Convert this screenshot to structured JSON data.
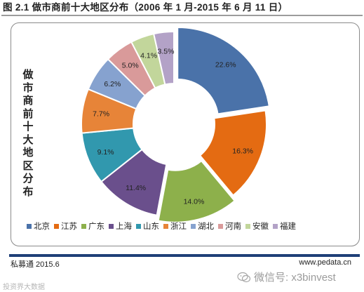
{
  "title": "图 2.1  做市商前十大地区分布（2006 年 1 月-2015 年 6 月 11 日）",
  "chart_data": {
    "type": "pie",
    "subtype": "donut",
    "ylabel": "做市商前十大地区分布",
    "legend_position": "bottom",
    "slices": [
      {
        "name": "北京",
        "value": 22.6,
        "label": "22.6%",
        "color": "#4a72a9",
        "exploded": true
      },
      {
        "name": "江苏",
        "value": 16.3,
        "label": "16.3%",
        "color": "#e46b12",
        "exploded": false
      },
      {
        "name": "广东",
        "value": 14.0,
        "label": "14.0%",
        "color": "#8db04b",
        "exploded": true
      },
      {
        "name": "上海",
        "value": 11.4,
        "label": "11.4%",
        "color": "#6a4f8c",
        "exploded": false
      },
      {
        "name": "山东",
        "value": 9.1,
        "label": "9.1%",
        "color": "#3198ae",
        "exploded": false
      },
      {
        "name": "浙江",
        "value": 7.7,
        "label": "7.7%",
        "color": "#e78438",
        "exploded": false
      },
      {
        "name": "湖北",
        "value": 6.2,
        "label": "6.2%",
        "color": "#86a2cf",
        "exploded": false
      },
      {
        "name": "河南",
        "value": 5.0,
        "label": "5.0%",
        "color": "#d99a9a",
        "exploded": false
      },
      {
        "name": "安徽",
        "value": 4.1,
        "label": "4.1%",
        "color": "#c2d69b",
        "exploded": false
      },
      {
        "name": "福建",
        "value": 3.5,
        "label": "3.5%",
        "color": "#b3a2c7",
        "exploded": false
      }
    ]
  },
  "footer": {
    "source": "私募通 2015.6",
    "website": "www.pedata.cn",
    "watermark": "微信号: x3binvest",
    "watermark2": "投资界大数据"
  },
  "colors": {
    "footer_rule": "#1f3f78",
    "frame_border": "#8a8a8a"
  }
}
